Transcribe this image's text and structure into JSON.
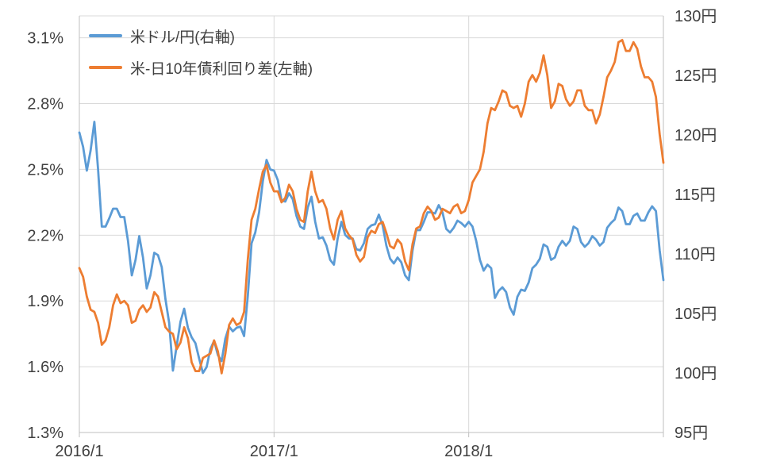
{
  "chart_data": {
    "type": "line",
    "title": "",
    "background_color": "#ffffff",
    "gridline_color": "#d9d9d9",
    "axis_color": "#bfbfbf",
    "text_color": "#404040",
    "grid": true,
    "legend_position": "top-left-inside",
    "x_axis": {
      "min": 2016,
      "max": 2019,
      "ticks": [
        {
          "value": 2016,
          "label": "2016/1"
        },
        {
          "value": 2017,
          "label": "2017/1"
        },
        {
          "value": 2018,
          "label": "2018/1"
        }
      ],
      "gridlines": [
        2017,
        2018
      ],
      "spacing": "uniform"
    },
    "left_axis": {
      "min": 1.3,
      "max": 3.2,
      "unit": "%",
      "ticks": [
        {
          "value": 3.1,
          "label": "3.1%"
        },
        {
          "value": 2.8,
          "label": "2.8%"
        },
        {
          "value": 2.5,
          "label": "2.5%"
        },
        {
          "value": 2.2,
          "label": "2.2%"
        },
        {
          "value": 1.9,
          "label": "1.9%"
        },
        {
          "value": 1.6,
          "label": "1.6%"
        },
        {
          "value": 1.3,
          "label": "1.3%"
        }
      ]
    },
    "right_axis": {
      "min": 95,
      "max": 130,
      "unit": "円",
      "ticks": [
        {
          "value": 130,
          "label": "130円"
        },
        {
          "value": 125,
          "label": "125円"
        },
        {
          "value": 120,
          "label": "120円"
        },
        {
          "value": 115,
          "label": "115円"
        },
        {
          "value": 110,
          "label": "110円"
        },
        {
          "value": 105,
          "label": "105円"
        },
        {
          "value": 100,
          "label": "100円"
        },
        {
          "value": 95,
          "label": "95円"
        }
      ]
    },
    "series": [
      {
        "name": "米ドル/円(右軸)",
        "axis": "right",
        "color": "#5b9bd5",
        "values": [
          120.2,
          119.0,
          117.0,
          118.7,
          121.1,
          117.1,
          112.3,
          112.3,
          113.0,
          113.8,
          113.8,
          113.1,
          113.1,
          111.1,
          108.2,
          109.5,
          111.5,
          109.7,
          107.1,
          108.2,
          110.1,
          109.9,
          108.9,
          106.2,
          104.2,
          100.2,
          102.3,
          104.3,
          105.4,
          103.8,
          103.0,
          102.5,
          101.2,
          100.0,
          100.5,
          102.0,
          102.7,
          101.5,
          101.0,
          102.9,
          103.9,
          103.5,
          103.8,
          103.9,
          103.1,
          106.5,
          110.9,
          111.8,
          113.5,
          116.1,
          117.9,
          117.1,
          117.0,
          116.2,
          114.5,
          114.4,
          115.1,
          114.6,
          113.2,
          112.3,
          112.1,
          113.9,
          114.8,
          112.7,
          111.3,
          111.4,
          110.7,
          109.5,
          109.1,
          111.3,
          112.7,
          111.6,
          111.3,
          111.3,
          110.4,
          110.3,
          110.9,
          112.1,
          112.4,
          112.5,
          113.3,
          112.4,
          110.7,
          109.6,
          109.2,
          109.7,
          109.3,
          108.2,
          107.8,
          110.3,
          112.0,
          112.0,
          112.7,
          113.5,
          113.5,
          113.4,
          114.1,
          113.5,
          112.1,
          111.8,
          112.2,
          112.8,
          112.6,
          112.3,
          112.7,
          112.3,
          111.1,
          109.5,
          108.6,
          109.1,
          108.8,
          106.3,
          106.9,
          107.2,
          106.8,
          105.5,
          104.9,
          106.4,
          107.0,
          106.9,
          107.6,
          108.8,
          109.1,
          109.6,
          110.8,
          110.6,
          109.5,
          109.7,
          110.6,
          111.1,
          110.7,
          111.1,
          112.3,
          112.1,
          111.0,
          110.6,
          110.9,
          111.5,
          111.2,
          110.7,
          111.0,
          112.2,
          112.6,
          112.9,
          113.9,
          113.6,
          112.5,
          112.5,
          113.2,
          113.4,
          112.8,
          112.8,
          113.5,
          114.0,
          113.6,
          110.3,
          107.8
        ]
      },
      {
        "name": "米-日10年債利回り差(左軸)",
        "axis": "left",
        "color": "#ed7d31",
        "values": [
          2.05,
          2.01,
          1.92,
          1.86,
          1.85,
          1.8,
          1.7,
          1.72,
          1.78,
          1.88,
          1.93,
          1.89,
          1.9,
          1.88,
          1.8,
          1.81,
          1.86,
          1.88,
          1.85,
          1.87,
          1.94,
          1.92,
          1.85,
          1.78,
          1.76,
          1.75,
          1.68,
          1.71,
          1.78,
          1.73,
          1.62,
          1.58,
          1.58,
          1.64,
          1.65,
          1.66,
          1.72,
          1.67,
          1.57,
          1.66,
          1.79,
          1.82,
          1.79,
          1.8,
          1.85,
          2.09,
          2.27,
          2.32,
          2.41,
          2.49,
          2.52,
          2.44,
          2.4,
          2.4,
          2.35,
          2.37,
          2.43,
          2.4,
          2.32,
          2.27,
          2.26,
          2.4,
          2.49,
          2.4,
          2.35,
          2.36,
          2.32,
          2.23,
          2.18,
          2.27,
          2.31,
          2.23,
          2.2,
          2.18,
          2.11,
          2.08,
          2.1,
          2.19,
          2.22,
          2.21,
          2.25,
          2.26,
          2.21,
          2.15,
          2.14,
          2.18,
          2.16,
          2.08,
          2.04,
          2.16,
          2.23,
          2.24,
          2.3,
          2.33,
          2.31,
          2.27,
          2.28,
          2.32,
          2.31,
          2.3,
          2.33,
          2.34,
          2.3,
          2.31,
          2.36,
          2.44,
          2.47,
          2.5,
          2.58,
          2.71,
          2.78,
          2.77,
          2.81,
          2.86,
          2.85,
          2.79,
          2.78,
          2.79,
          2.74,
          2.8,
          2.9,
          2.93,
          2.9,
          2.94,
          3.02,
          2.93,
          2.78,
          2.81,
          2.89,
          2.88,
          2.82,
          2.79,
          2.81,
          2.86,
          2.86,
          2.79,
          2.77,
          2.77,
          2.71,
          2.75,
          2.83,
          2.92,
          2.95,
          2.99,
          3.08,
          3.09,
          3.04,
          3.04,
          3.08,
          3.05,
          2.97,
          2.92,
          2.92,
          2.9,
          2.83,
          2.66,
          2.53
        ]
      }
    ]
  }
}
